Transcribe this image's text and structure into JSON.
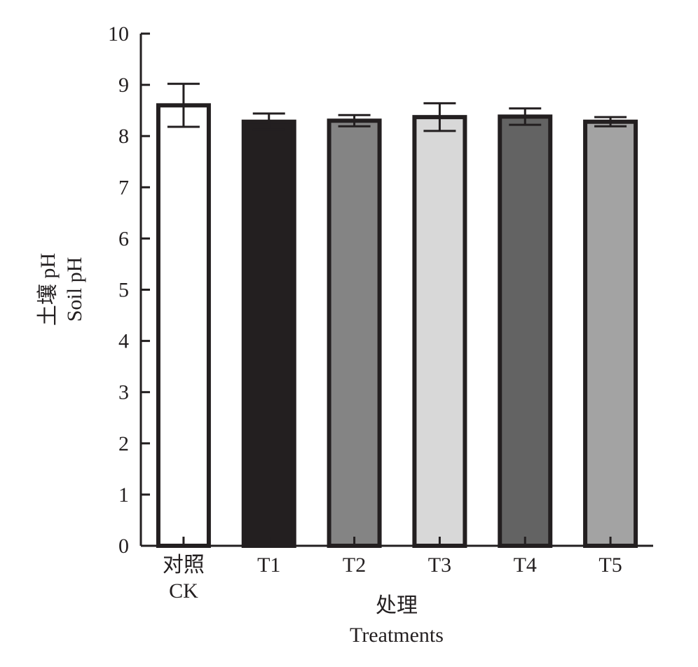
{
  "chart_data": {
    "type": "bar",
    "categories": [
      {
        "label_zh": "对照",
        "label_en": "CK",
        "fill": "#ffffff"
      },
      {
        "label_zh": "",
        "label_en": "T1",
        "fill": "#231f20"
      },
      {
        "label_zh": "",
        "label_en": "T2",
        "fill": "#848484"
      },
      {
        "label_zh": "",
        "label_en": "T3",
        "fill": "#d8d8d8"
      },
      {
        "label_zh": "",
        "label_en": "T4",
        "fill": "#636363"
      },
      {
        "label_zh": "",
        "label_en": "T5",
        "fill": "#a3a3a3"
      }
    ],
    "values": [
      8.6,
      8.28,
      8.3,
      8.37,
      8.38,
      8.28
    ],
    "error_bars": [
      0.42,
      0.16,
      0.11,
      0.27,
      0.16,
      0.09
    ],
    "ylim": [
      0,
      10
    ],
    "yticks": [
      0,
      1,
      2,
      3,
      4,
      5,
      6,
      7,
      8,
      9,
      10
    ],
    "ylabel_zh": "土壤 pH",
    "ylabel_en": "Soil pH",
    "xlabel_zh": "处理",
    "xlabel_en": "Treatments",
    "bar_outline_color": "#231f20",
    "grid": false,
    "legend": "none"
  }
}
